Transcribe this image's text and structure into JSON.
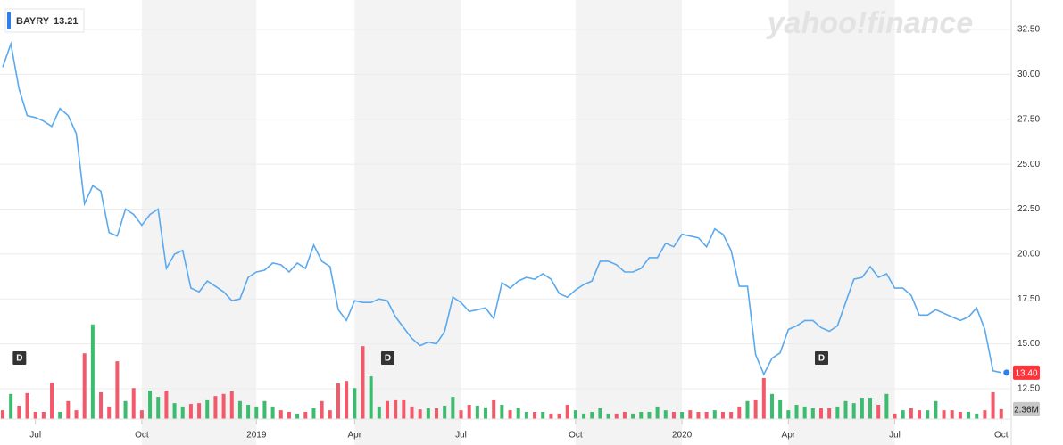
{
  "chart_data": {
    "type": "line",
    "series": [
      {
        "name": "BAYRY",
        "color": "#5ba9ee",
        "values": [
          30.4,
          31.7,
          29.2,
          27.7,
          27.6,
          27.4,
          27.1,
          28.1,
          27.7,
          26.7,
          22.8,
          23.8,
          23.5,
          21.2,
          21.0,
          22.5,
          22.2,
          21.6,
          22.2,
          22.5,
          19.2,
          20.0,
          20.2,
          18.1,
          17.9,
          18.5,
          18.2,
          17.9,
          17.4,
          17.5,
          18.7,
          19.0,
          19.1,
          19.5,
          19.4,
          19.0,
          19.5,
          19.2,
          20.5,
          19.6,
          19.3,
          16.9,
          16.3,
          17.4,
          17.3,
          17.3,
          17.5,
          17.4,
          16.5,
          15.9,
          15.3,
          14.9,
          15.1,
          15.0,
          15.7,
          17.6,
          17.3,
          16.8,
          16.9,
          17.0,
          16.4,
          18.4,
          18.1,
          18.5,
          18.7,
          18.6,
          18.9,
          18.6,
          17.8,
          17.6,
          18.0,
          18.3,
          18.5,
          19.6,
          19.6,
          19.4,
          19.0,
          19.0,
          19.2,
          19.8,
          19.8,
          20.6,
          20.4,
          21.1,
          21.0,
          20.9,
          20.4,
          21.4,
          21.1,
          20.2,
          18.2,
          18.2,
          14.4,
          13.3,
          14.2,
          14.5,
          15.8,
          16.0,
          16.3,
          16.3,
          15.9,
          15.7,
          16.0,
          17.3,
          18.6,
          18.7,
          19.3,
          18.7,
          18.9,
          18.1,
          18.1,
          17.7,
          16.6,
          16.6,
          16.9,
          16.7,
          16.5,
          16.3,
          16.5,
          17.0,
          15.8,
          13.5,
          13.4
        ]
      }
    ],
    "current_price": 13.21,
    "price_tag": {
      "value": 13.4,
      "label": "13.40"
    },
    "categories": [
      null,
      null,
      null,
      null,
      "Jul",
      null,
      null,
      null,
      null,
      null,
      null,
      null,
      null,
      null,
      null,
      null,
      null,
      "Oct",
      null,
      null,
      null,
      null,
      null,
      null,
      null,
      null,
      null,
      null,
      null,
      null,
      null,
      "2019",
      null,
      null,
      null,
      null,
      null,
      null,
      null,
      null,
      null,
      null,
      null,
      "Apr",
      null,
      null,
      null,
      null,
      null,
      null,
      null,
      null,
      null,
      null,
      null,
      null,
      "Jul",
      null,
      null,
      null,
      null,
      null,
      null,
      null,
      null,
      null,
      null,
      null,
      null,
      null,
      "Oct",
      null,
      null,
      null,
      null,
      null,
      null,
      null,
      null,
      null,
      null,
      null,
      null,
      "2020",
      null,
      null,
      null,
      null,
      null,
      null,
      null,
      null,
      null,
      null,
      null,
      null,
      "Apr",
      null,
      null,
      null,
      null,
      null,
      null,
      null,
      null,
      null,
      null,
      null,
      null,
      "Jul",
      null,
      null,
      null,
      null,
      null,
      null,
      null,
      null,
      null,
      null,
      null,
      null,
      "Oct"
    ],
    "ylim": [
      9.37,
      34.14
    ],
    "yticks": [
      {
        "value": 12.5,
        "label": "12.50"
      },
      {
        "value": 15,
        "label": "15.00"
      },
      {
        "value": 17.5,
        "label": "17.50"
      },
      {
        "value": 20,
        "label": "20.00"
      },
      {
        "value": 22.5,
        "label": "22.50"
      },
      {
        "value": 25,
        "label": "25.00"
      },
      {
        "value": 27.5,
        "label": "27.50"
      },
      {
        "value": 30,
        "label": "30.00"
      },
      {
        "value": 32.5,
        "label": "32.50"
      }
    ],
    "grid": true,
    "volume": {
      "up_color": "#3dbb6f",
      "down_color": "#f2596a",
      "ylim": [
        0,
        100
      ],
      "values": [
        2.1,
        6.0,
        3.2,
        6.2,
        1.7,
        1.7,
        8.7,
        1.7,
        4.3,
        2.1,
        15.7,
        22.6,
        6.4,
        3.0,
        13.8,
        4.3,
        7.4,
        2.1,
        6.8,
        5.3,
        6.8,
        3.8,
        3.0,
        3.6,
        3.8,
        4.7,
        5.5,
        6.0,
        6.6,
        4.3,
        3.4,
        3.0,
        4.3,
        3.0,
        2.1,
        1.7,
        1.3,
        1.7,
        2.6,
        4.3,
        2.1,
        8.5,
        9.1,
        7.4,
        17.4,
        10.2,
        3.0,
        4.3,
        4.7,
        4.7,
        3.0,
        2.3,
        2.6,
        2.6,
        3.2,
        5.3,
        2.1,
        3.4,
        3.2,
        2.8,
        4.7,
        3.4,
        2.1,
        2.6,
        1.7,
        1.7,
        1.7,
        1.3,
        1.3,
        3.4,
        2.1,
        1.3,
        1.7,
        2.6,
        1.3,
        1.3,
        1.7,
        1.3,
        1.7,
        1.7,
        3.0,
        2.1,
        1.7,
        1.7,
        2.1,
        1.7,
        1.7,
        2.1,
        1.7,
        1.7,
        3.0,
        4.3,
        4.7,
        9.8,
        6.0,
        4.7,
        2.1,
        3.4,
        3.0,
        2.6,
        2.6,
        2.6,
        3.0,
        4.3,
        3.8,
        5.1,
        5.1,
        3.4,
        6.0,
        1.3,
        2.1,
        2.6,
        2.1,
        2.1,
        4.3,
        2.1,
        2.1,
        1.7,
        1.7,
        1.3,
        2.1,
        6.4,
        2.36
      ]
    },
    "volume_tag": {
      "value": 2.36,
      "label": "2.36M"
    },
    "events": [
      {
        "label": "D",
        "category_index": 2
      },
      {
        "label": "D",
        "category_index": 47
      },
      {
        "label": "D",
        "category_index": 100
      }
    ],
    "watermark": "yahoo!finance"
  }
}
